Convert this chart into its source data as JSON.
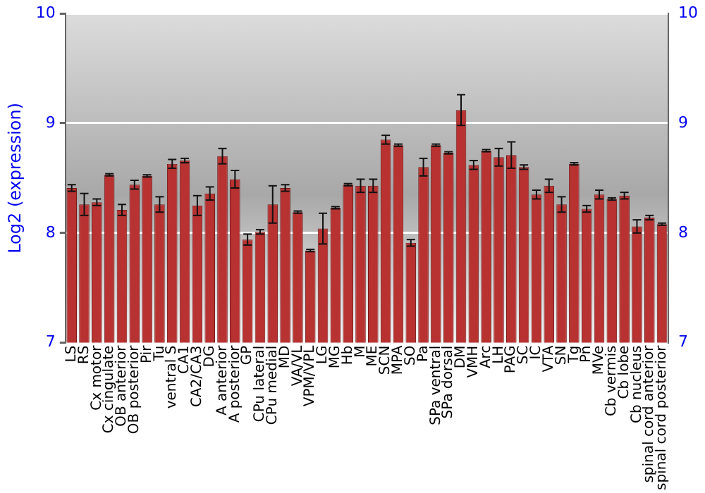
{
  "chart_data": {
    "type": "bar",
    "ylabel": "Log2 (expression)",
    "categories": [
      "LS",
      "RS",
      "Cx motor",
      "Cx cingulate",
      "OB anterior",
      "OB posterior",
      "Pir",
      "Tu",
      "ventral S",
      "CA1",
      "CA2/CA3",
      "DG",
      "A anterior",
      "A posterior",
      "GP",
      "CPu lateral",
      "CPu medial",
      "MD",
      "VA/VL",
      "VPM/VPL",
      "LG",
      "MG",
      "Hb",
      "M",
      "ME",
      "SCN",
      "MPA",
      "SO",
      "Pa",
      "SPa ventral",
      "SPa dorsal",
      "DM",
      "VMH",
      "Arc",
      "LH",
      "PAG",
      "SC",
      "IC",
      "VTA",
      "SN",
      "Tg",
      "Pn",
      "MVe",
      "Cb vermis",
      "Cb lobe",
      "Cb nucleus",
      "spinal cord anterior",
      "spinal cord posterior"
    ],
    "values": [
      8.41,
      8.26,
      8.28,
      8.53,
      8.21,
      8.44,
      8.52,
      8.26,
      8.63,
      8.66,
      8.25,
      8.36,
      8.7,
      8.49,
      7.94,
      8.01,
      8.26,
      8.41,
      8.19,
      7.84,
      8.04,
      8.23,
      8.44,
      8.43,
      8.43,
      8.85,
      8.8,
      7.91,
      8.6,
      8.8,
      8.73,
      9.12,
      8.62,
      8.75,
      8.69,
      8.71,
      8.6,
      8.35,
      8.43,
      8.26,
      8.63,
      8.22,
      8.35,
      8.31,
      8.34,
      8.06,
      8.14,
      8.08
    ],
    "errors": [
      0.03,
      0.1,
      0.03,
      0.01,
      0.05,
      0.04,
      0.01,
      0.07,
      0.04,
      0.02,
      0.09,
      0.06,
      0.07,
      0.08,
      0.05,
      0.02,
      0.17,
      0.03,
      0.01,
      0.01,
      0.14,
      0.01,
      0.01,
      0.06,
      0.06,
      0.04,
      0.01,
      0.03,
      0.08,
      0.01,
      0.01,
      0.14,
      0.04,
      0.01,
      0.08,
      0.12,
      0.02,
      0.04,
      0.06,
      0.07,
      0.01,
      0.03,
      0.04,
      0.01,
      0.03,
      0.06,
      0.02,
      0.01
    ],
    "color": "#b83232",
    "ylim": [
      7,
      10
    ],
    "yticks": [
      7,
      8,
      9,
      10
    ],
    "y2lim": [
      7,
      10
    ],
    "y2ticks": [
      7,
      8,
      9,
      10
    ],
    "grid": "y",
    "legend": false
  }
}
